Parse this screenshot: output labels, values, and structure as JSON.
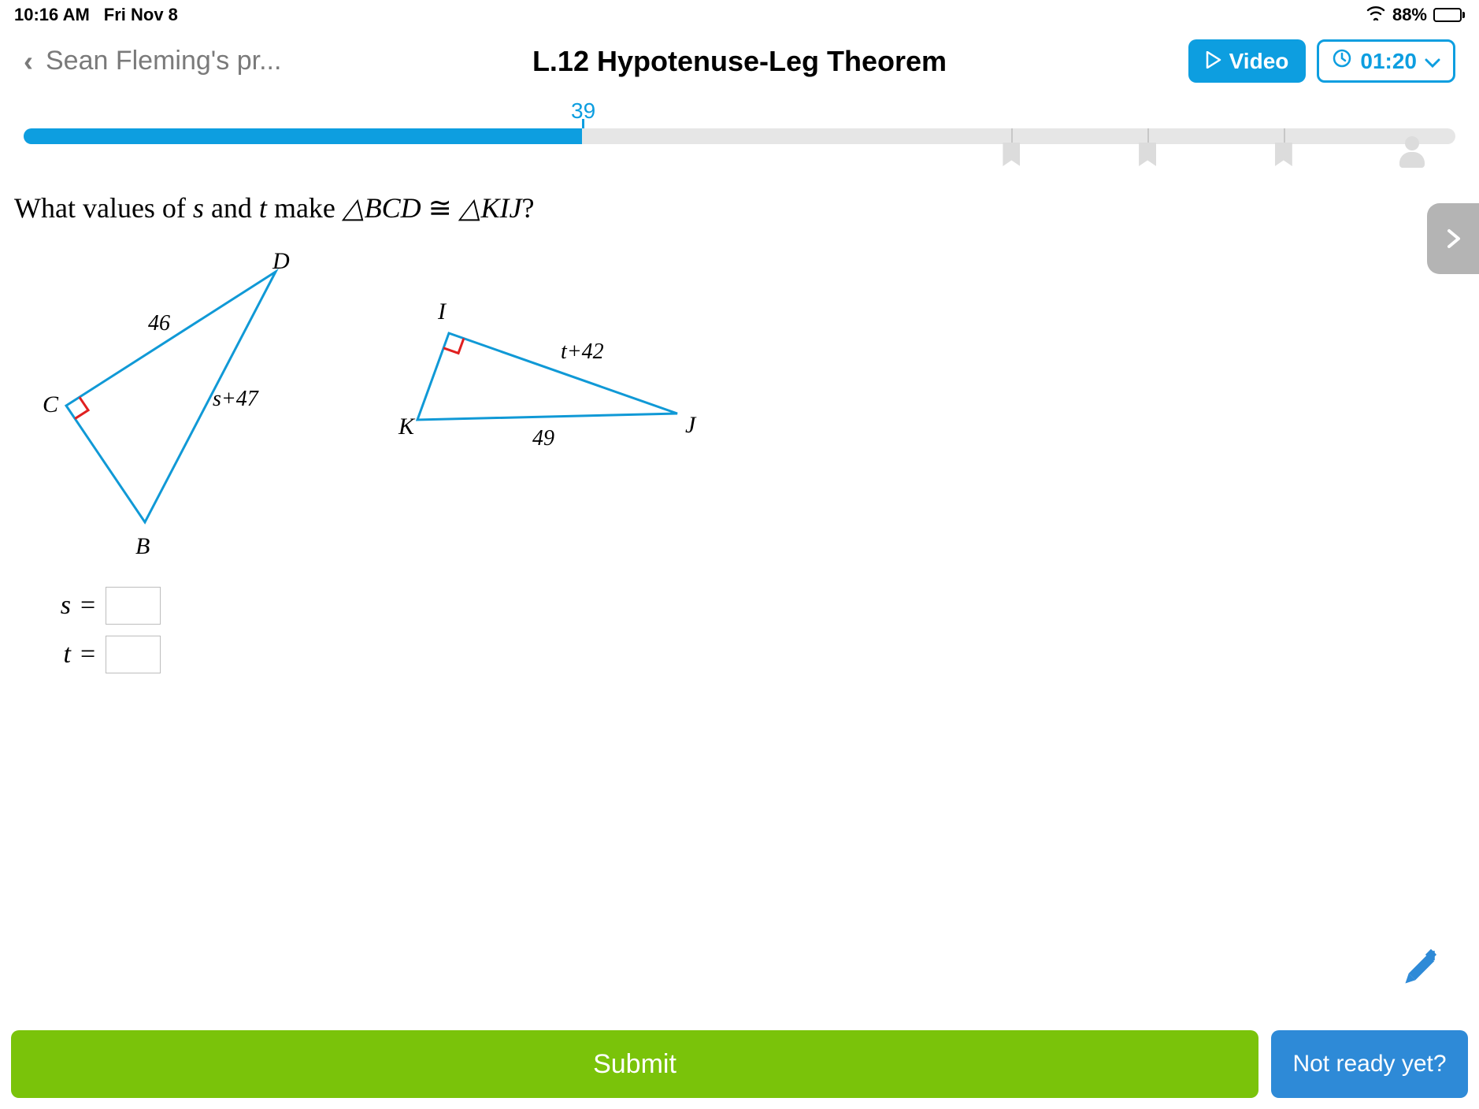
{
  "status": {
    "time": "10:16 AM",
    "date": "Fri Nov 8",
    "battery_pct": "88%",
    "battery_fill_pct": 88
  },
  "header": {
    "back_label": "Sean Fleming's pr...",
    "title": "L.12 Hypotenuse-Leg Theorem",
    "video_label": "Video",
    "timer_label": "01:20"
  },
  "progress": {
    "score": "39",
    "fill_pct": 39,
    "ticks_pct": [
      69,
      78.5,
      88
    ],
    "bookmarks_pct": [
      69,
      78.5,
      88
    ],
    "person_pct": 97,
    "track_color": "#e6e6e6",
    "fill_color": "#0d9ee0"
  },
  "question": {
    "prefix": "What values of ",
    "var1": "s",
    "mid1": " and ",
    "var2": "t",
    "mid2": " make ",
    "tri1": "△BCD",
    "congr": " ≅ ",
    "tri2": "△KIJ",
    "suffix": "?"
  },
  "diagram": {
    "stroke_color": "#1099d6",
    "right_angle_color": "#e02020",
    "label_color": "#000000",
    "label_font": "italic 30px Georgia",
    "side_font": "28px Georgia",
    "tri1": {
      "points": {
        "C": [
          44,
          200
        ],
        "B": [
          144,
          348
        ],
        "D": [
          310,
          30
        ]
      },
      "labels": {
        "C": "C",
        "B": "B",
        "D": "D"
      },
      "label_pos": {
        "C": [
          14,
          208
        ],
        "B": [
          132,
          388
        ],
        "D": [
          306,
          26
        ]
      },
      "sides": {
        "CD": "46",
        "BD": "s+47"
      },
      "side_pos": {
        "CD": [
          148,
          104
        ],
        "BD": [
          230,
          200
        ]
      },
      "right_angle_at": "C"
    },
    "tri2": {
      "points": {
        "I": [
          530,
          108
        ],
        "K": [
          490,
          218
        ],
        "J": [
          820,
          210
        ]
      },
      "labels": {
        "I": "I",
        "K": "K",
        "J": "J"
      },
      "label_pos": {
        "I": [
          516,
          90
        ],
        "K": [
          466,
          236
        ],
        "J": [
          830,
          234
        ]
      },
      "sides": {
        "IJ": "t+42",
        "KJ": "49"
      },
      "side_pos": {
        "IJ": [
          672,
          140
        ],
        "KJ": [
          636,
          250
        ]
      },
      "right_angle_at": "I"
    }
  },
  "answers": {
    "rows": [
      {
        "var": "s"
      },
      {
        "var": "t"
      }
    ],
    "eq": "="
  },
  "bottom": {
    "submit": "Submit",
    "not_ready": "Not ready yet?"
  },
  "colors": {
    "accent": "#0d9ee0",
    "submit": "#7ac30a",
    "not_ready": "#2e8ad7"
  }
}
